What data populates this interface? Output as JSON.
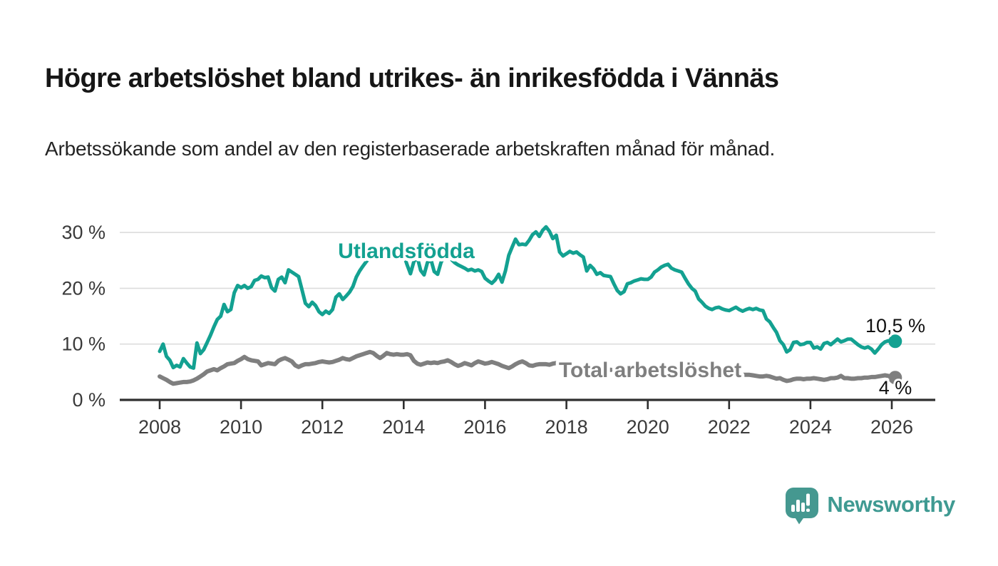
{
  "header": {
    "title": "Högre arbetslöshet bland utrikes- än inrikesfödda i Vännäs",
    "subtitle": "Arbetssökande som andel av den registerbaserade arbetskraften månad för månad."
  },
  "branding": {
    "logo_text": "Newsworthy",
    "logo_icon": "bar-chart-speech-bubble-icon",
    "logo_color": "#459890"
  },
  "colors": {
    "foreign_born_line": "#13A191",
    "total_line": "#7F7F7F",
    "gridline": "#DCDCDC",
    "axis": "#2F2F2F",
    "tick_label": "#3A3A3A",
    "end_label": "#111111",
    "background": "#FFFFFF"
  },
  "chart_data": {
    "type": "line",
    "title": "Högre arbetslöshet bland utrikes- än inrikesfödda i Vännäs",
    "subtitle": "Arbetssökande som andel av den registerbaserade arbetskraften månad för månad.",
    "x_start": "2008-01",
    "x_end": "2026-02",
    "x_resolution": "monthly",
    "x_tick_labels": [
      "2008",
      "2010",
      "2012",
      "2014",
      "2016",
      "2018",
      "2020",
      "2022",
      "2024",
      "2026"
    ],
    "x_tick_years": [
      2008,
      2010,
      2012,
      2014,
      2016,
      2018,
      2020,
      2022,
      2024,
      2026
    ],
    "y_ticks": [
      0,
      10,
      20,
      30
    ],
    "y_tick_labels": [
      "0 %",
      "10 %",
      "20 %",
      "30 %"
    ],
    "ylim": [
      0,
      33
    ],
    "grid": "horizontal",
    "legend_position": "inline-labels",
    "series": [
      {
        "name": "Utlandsfödda",
        "color": "#13A191",
        "end_label": "10,5 %",
        "end_value": 10.5,
        "values": [
          8.7,
          10,
          7.8,
          7.1,
          5.8,
          6.2,
          5.9,
          7.4,
          6.6,
          5.9,
          5.7,
          10.2,
          8.3,
          9,
          10.3,
          11.6,
          13.1,
          14.4,
          15,
          17.1,
          15.8,
          16.2,
          19.2,
          20.5,
          20.1,
          20.5,
          20,
          20.3,
          21.4,
          21.6,
          22.2,
          21.9,
          22,
          20.1,
          19.5,
          21.6,
          22,
          21,
          23.3,
          22.9,
          22.5,
          22.1,
          19.7,
          17.3,
          16.7,
          17.5,
          16.9,
          15.8,
          15.3,
          15.9,
          15.5,
          16.2,
          18.4,
          19,
          18,
          18.6,
          19.3,
          20.3,
          22,
          23.1,
          24,
          24.8,
          25.5,
          26,
          26.5,
          26.2,
          26.8,
          27,
          26.5,
          26.8,
          27,
          26.4,
          26,
          24.2,
          22.6,
          24.8,
          25.6,
          23.2,
          22.4,
          24.6,
          25.2,
          23,
          22.5,
          24.6,
          25.8,
          26.2,
          25.2,
          24.6,
          24.2,
          23.9,
          23.6,
          23.2,
          23.4,
          23.1,
          23.3,
          23,
          21.8,
          21.3,
          20.9,
          21.5,
          22.5,
          21.1,
          23.1,
          25.9,
          27.4,
          28.8,
          27.8,
          27.9,
          27.8,
          28.6,
          29.6,
          30.1,
          29.3,
          30.4,
          31,
          30.2,
          28.9,
          29.5,
          26.5,
          25.8,
          26.2,
          26.6,
          26.3,
          26.5,
          26,
          25.6,
          23.1,
          24.1,
          23.5,
          22.5,
          22.8,
          22.3,
          22.2,
          22.1,
          20.8,
          19.6,
          19,
          19.4,
          20.8,
          21,
          21.3,
          21.5,
          21.7,
          21.6,
          21.6,
          22,
          22.9,
          23.3,
          23.8,
          24.1,
          24.3,
          23.6,
          23.3,
          23.1,
          22.9,
          21.8,
          20.8,
          20,
          19.5,
          18.1,
          17.5,
          16.8,
          16.4,
          16.2,
          16.5,
          16.6,
          16.3,
          16.1,
          16,
          16.3,
          16.6,
          16.2,
          15.9,
          16.2,
          16.4,
          16.2,
          16.4,
          16.1,
          16,
          14.5,
          14,
          13,
          12.1,
          10.6,
          9.9,
          8.6,
          9,
          10.3,
          10.4,
          9.9,
          10,
          10.3,
          10.3,
          9.3,
          9.5,
          9.1,
          10.1,
          10.3,
          9.9,
          10.4,
          10.9,
          10.4,
          10.6,
          10.9,
          10.9,
          10.4,
          9.9,
          9.5,
          9.3,
          9.5,
          9.1,
          8.4,
          9.1,
          9.9,
          10.4,
          10.6,
          10.4,
          10.5
        ]
      },
      {
        "name": "Total arbetslöshet",
        "color": "#7F7F7F",
        "end_label": "4 %",
        "end_value": 4.0,
        "values": [
          4.2,
          3.9,
          3.6,
          3.2,
          2.9,
          3,
          3.1,
          3.2,
          3.2,
          3.3,
          3.5,
          3.8,
          4.2,
          4.6,
          5.1,
          5.3,
          5.5,
          5.3,
          5.7,
          6,
          6.4,
          6.5,
          6.6,
          7,
          7.3,
          7.7,
          7.3,
          7.1,
          7,
          6.9,
          6.2,
          6.4,
          6.6,
          6.5,
          6.4,
          7,
          7.3,
          7.5,
          7.2,
          6.9,
          6.2,
          5.9,
          6.2,
          6.4,
          6.4,
          6.5,
          6.6,
          6.8,
          6.9,
          6.8,
          6.7,
          6.8,
          7,
          7.2,
          7.5,
          7.3,
          7.2,
          7.5,
          7.8,
          8,
          8.2,
          8.4,
          8.6,
          8.4,
          7.9,
          7.5,
          7.9,
          8.4,
          8.2,
          8.1,
          8.2,
          8.1,
          8.1,
          8.2,
          8,
          7,
          6.5,
          6.3,
          6.5,
          6.7,
          6.6,
          6.7,
          6.6,
          6.8,
          6.9,
          7.1,
          6.8,
          6.4,
          6.1,
          6.3,
          6.6,
          6.4,
          6.2,
          6.6,
          6.9,
          6.7,
          6.5,
          6.6,
          6.8,
          6.6,
          6.4,
          6.1,
          5.9,
          5.7,
          6,
          6.4,
          6.7,
          6.9,
          6.6,
          6.2,
          6.1,
          6.3,
          6.4,
          6.4,
          6.4,
          6.3,
          6.5,
          6.6,
          6.5,
          6.4,
          6.3,
          6.2,
          6.1,
          6,
          5.9,
          5.8,
          5.7,
          5.7,
          5.6,
          5.6,
          5.5,
          5.5,
          5.4,
          5.4,
          5.3,
          5.3,
          5.2,
          5.2,
          5.1,
          5.1,
          5,
          5,
          5,
          5,
          5,
          5.1,
          5.4,
          5.6,
          5.7,
          5.8,
          5.8,
          5.7,
          5.6,
          5.5,
          5.4,
          5.3,
          5.2,
          5.1,
          5,
          4.9,
          4.9,
          4.8,
          4.8,
          4.7,
          4.7,
          4.6,
          4.6,
          4.6,
          4.6,
          4.6,
          4.5,
          4.5,
          4.5,
          4.5,
          4.5,
          4.4,
          4.3,
          4.2,
          4.2,
          4.3,
          4.2,
          4,
          3.8,
          3.9,
          3.6,
          3.4,
          3.5,
          3.7,
          3.8,
          3.8,
          3.7,
          3.8,
          3.8,
          3.9,
          3.8,
          3.7,
          3.6,
          3.7,
          3.9,
          3.9,
          4,
          4.3,
          3.9,
          3.9,
          3.8,
          3.8,
          3.9,
          3.9,
          4,
          4,
          4.1,
          4.1,
          4.2,
          4.3,
          4.4,
          4.3,
          4.1,
          4
        ]
      }
    ]
  }
}
